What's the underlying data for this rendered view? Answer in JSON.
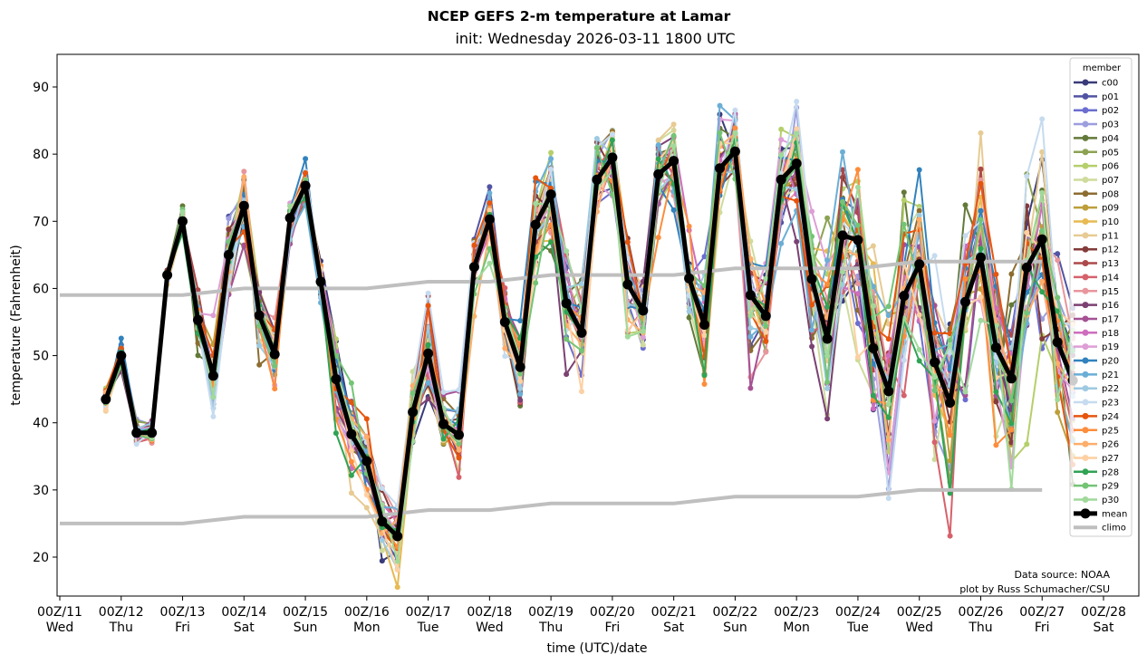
{
  "title": "NCEP GEFS 2-m temperature at Lamar",
  "subtitle": "init: Wednesday 2026-03-11 1800 UTC",
  "annotation": [
    "Data source: NOAA",
    "plot by Russ Schumacher/CSU"
  ],
  "chart_data": {
    "type": "line",
    "title": "NCEP GEFS 2-m temperature at Lamar",
    "subtitle": "init: Wednesday 2026-03-11 1800 UTC",
    "xlabel": "time (UTC)/date",
    "ylabel": "temperature (Fahrenheit)",
    "ylim": [
      14,
      95
    ],
    "yticks": [
      20,
      30,
      40,
      50,
      60,
      70,
      80,
      90
    ],
    "x_units": "hours since 00Z/11",
    "xlim": [
      -3,
      411
    ],
    "xticks": [
      {
        "hour": 0,
        "line1": "00Z/11",
        "line2": "Wed"
      },
      {
        "hour": 24,
        "line1": "00Z/12",
        "line2": "Thu"
      },
      {
        "hour": 48,
        "line1": "00Z/13",
        "line2": "Fri"
      },
      {
        "hour": 72,
        "line1": "00Z/14",
        "line2": "Sat"
      },
      {
        "hour": 96,
        "line1": "00Z/15",
        "line2": "Sun"
      },
      {
        "hour": 120,
        "line1": "00Z/16",
        "line2": "Mon"
      },
      {
        "hour": 144,
        "line1": "00Z/17",
        "line2": "Tue"
      },
      {
        "hour": 168,
        "line1": "00Z/18",
        "line2": "Wed"
      },
      {
        "hour": 192,
        "line1": "00Z/19",
        "line2": "Thu"
      },
      {
        "hour": 216,
        "line1": "00Z/20",
        "line2": "Fri"
      },
      {
        "hour": 240,
        "line1": "00Z/21",
        "line2": "Sat"
      },
      {
        "hour": 264,
        "line1": "00Z/22",
        "line2": "Sun"
      },
      {
        "hour": 288,
        "line1": "00Z/23",
        "line2": "Mon"
      },
      {
        "hour": 312,
        "line1": "00Z/24",
        "line2": "Tue"
      },
      {
        "hour": 336,
        "line1": "00Z/25",
        "line2": "Wed"
      },
      {
        "hour": 360,
        "line1": "00Z/26",
        "line2": "Thu"
      },
      {
        "hour": 384,
        "line1": "00Z/27",
        "line2": "Fri"
      },
      {
        "hour": 408,
        "line1": "00Z/28",
        "line2": "Sat"
      }
    ],
    "grid": false,
    "legend": {
      "title": "member",
      "placement": "top-right"
    },
    "time_start_hour": 18,
    "time_step_hours": 6,
    "mean": [
      43.5,
      50.0,
      38.5,
      38.5,
      62.0,
      70.0,
      55.3,
      47.0,
      65.0,
      72.3,
      56.0,
      50.2,
      70.5,
      75.3,
      61.0,
      46.5,
      38.3,
      34.3,
      25.3,
      23.1,
      41.6,
      50.3,
      39.8,
      38.2,
      63.2,
      70.3,
      55.0,
      48.3,
      69.5,
      74.0,
      57.8,
      53.4,
      76.2,
      79.5,
      60.6,
      56.7,
      77.0,
      79.0,
      61.5,
      54.6,
      77.9,
      80.4,
      59.0,
      55.9,
      76.2,
      78.6,
      61.4,
      52.5,
      67.9,
      67.2,
      51.1,
      44.7,
      58.9,
      63.6,
      49.0,
      43.0,
      58.0,
      64.6,
      51.2,
      46.6,
      63.1,
      67.3,
      52.0,
      46.3
    ],
    "spread": [
      1.2,
      1.5,
      1.2,
      1.6,
      1.0,
      1.3,
      2.5,
      4.0,
      4.0,
      3.5,
      3.0,
      3.3,
      2.5,
      2.0,
      2.5,
      5.0,
      4.5,
      4.5,
      3.5,
      4.0,
      4.5,
      5.5,
      3.5,
      4.0,
      3.5,
      3.5,
      3.5,
      4.0,
      4.5,
      4.5,
      5.0,
      4.5,
      4.5,
      4.0,
      5.5,
      4.5,
      5.0,
      4.5,
      6.0,
      7.0,
      6.0,
      5.0,
      6.0,
      5.5,
      6.0,
      5.5,
      9.0,
      9.5,
      8.0,
      9.5,
      9.0,
      11.0,
      10.0,
      8.5,
      9.5,
      11.0,
      9.0,
      9.5,
      9.5,
      9.0,
      10.0,
      10.5,
      9.0,
      9.5
    ],
    "climo": [
      {
        "name": "climo-high",
        "hours": [
          0,
          24,
          48,
          72,
          96,
          120,
          144,
          168,
          192,
          216,
          240,
          264,
          288,
          312,
          336,
          360,
          384
        ],
        "values": [
          59,
          59,
          59,
          60,
          60,
          60,
          61,
          61,
          62,
          62,
          62,
          63,
          63,
          63,
          64,
          64,
          64
        ]
      },
      {
        "name": "climo-low",
        "hours": [
          0,
          24,
          48,
          72,
          96,
          120,
          144,
          168,
          192,
          216,
          240,
          264,
          288,
          312,
          336,
          360,
          384
        ],
        "values": [
          25,
          25,
          25,
          26,
          26,
          26,
          27,
          27,
          28,
          28,
          28,
          29,
          29,
          29,
          30,
          30,
          30
        ]
      }
    ],
    "series": [
      {
        "name": "c00",
        "color": "#393b79"
      },
      {
        "name": "p01",
        "color": "#5254a3"
      },
      {
        "name": "p02",
        "color": "#6b6ecf"
      },
      {
        "name": "p03",
        "color": "#9c9ede"
      },
      {
        "name": "p04",
        "color": "#637939"
      },
      {
        "name": "p05",
        "color": "#8ca252"
      },
      {
        "name": "p06",
        "color": "#b5cf6b"
      },
      {
        "name": "p07",
        "color": "#cedb9c"
      },
      {
        "name": "p08",
        "color": "#8c6d31"
      },
      {
        "name": "p09",
        "color": "#bd9e39"
      },
      {
        "name": "p10",
        "color": "#e7ba52"
      },
      {
        "name": "p11",
        "color": "#e7cb94"
      },
      {
        "name": "p12",
        "color": "#843c39"
      },
      {
        "name": "p13",
        "color": "#ad494a"
      },
      {
        "name": "p14",
        "color": "#d6616b"
      },
      {
        "name": "p15",
        "color": "#e7969c"
      },
      {
        "name": "p16",
        "color": "#7b4173"
      },
      {
        "name": "p17",
        "color": "#a55194"
      },
      {
        "name": "p18",
        "color": "#ce6dbd"
      },
      {
        "name": "p19",
        "color": "#de9ed6"
      },
      {
        "name": "p20",
        "color": "#3182bd"
      },
      {
        "name": "p21",
        "color": "#6baed6"
      },
      {
        "name": "p22",
        "color": "#9ecae1"
      },
      {
        "name": "p23",
        "color": "#c6dbef"
      },
      {
        "name": "p24",
        "color": "#e6550d"
      },
      {
        "name": "p25",
        "color": "#fd8d3c"
      },
      {
        "name": "p26",
        "color": "#fdae6b"
      },
      {
        "name": "p27",
        "color": "#fdd0a2"
      },
      {
        "name": "p28",
        "color": "#31a354"
      },
      {
        "name": "p29",
        "color": "#74c476"
      },
      {
        "name": "p30",
        "color": "#a1d99b"
      }
    ],
    "mean_label": "mean",
    "mean_color": "#000000",
    "climo_label": "climo",
    "climo_color": "#bfbfbf"
  }
}
